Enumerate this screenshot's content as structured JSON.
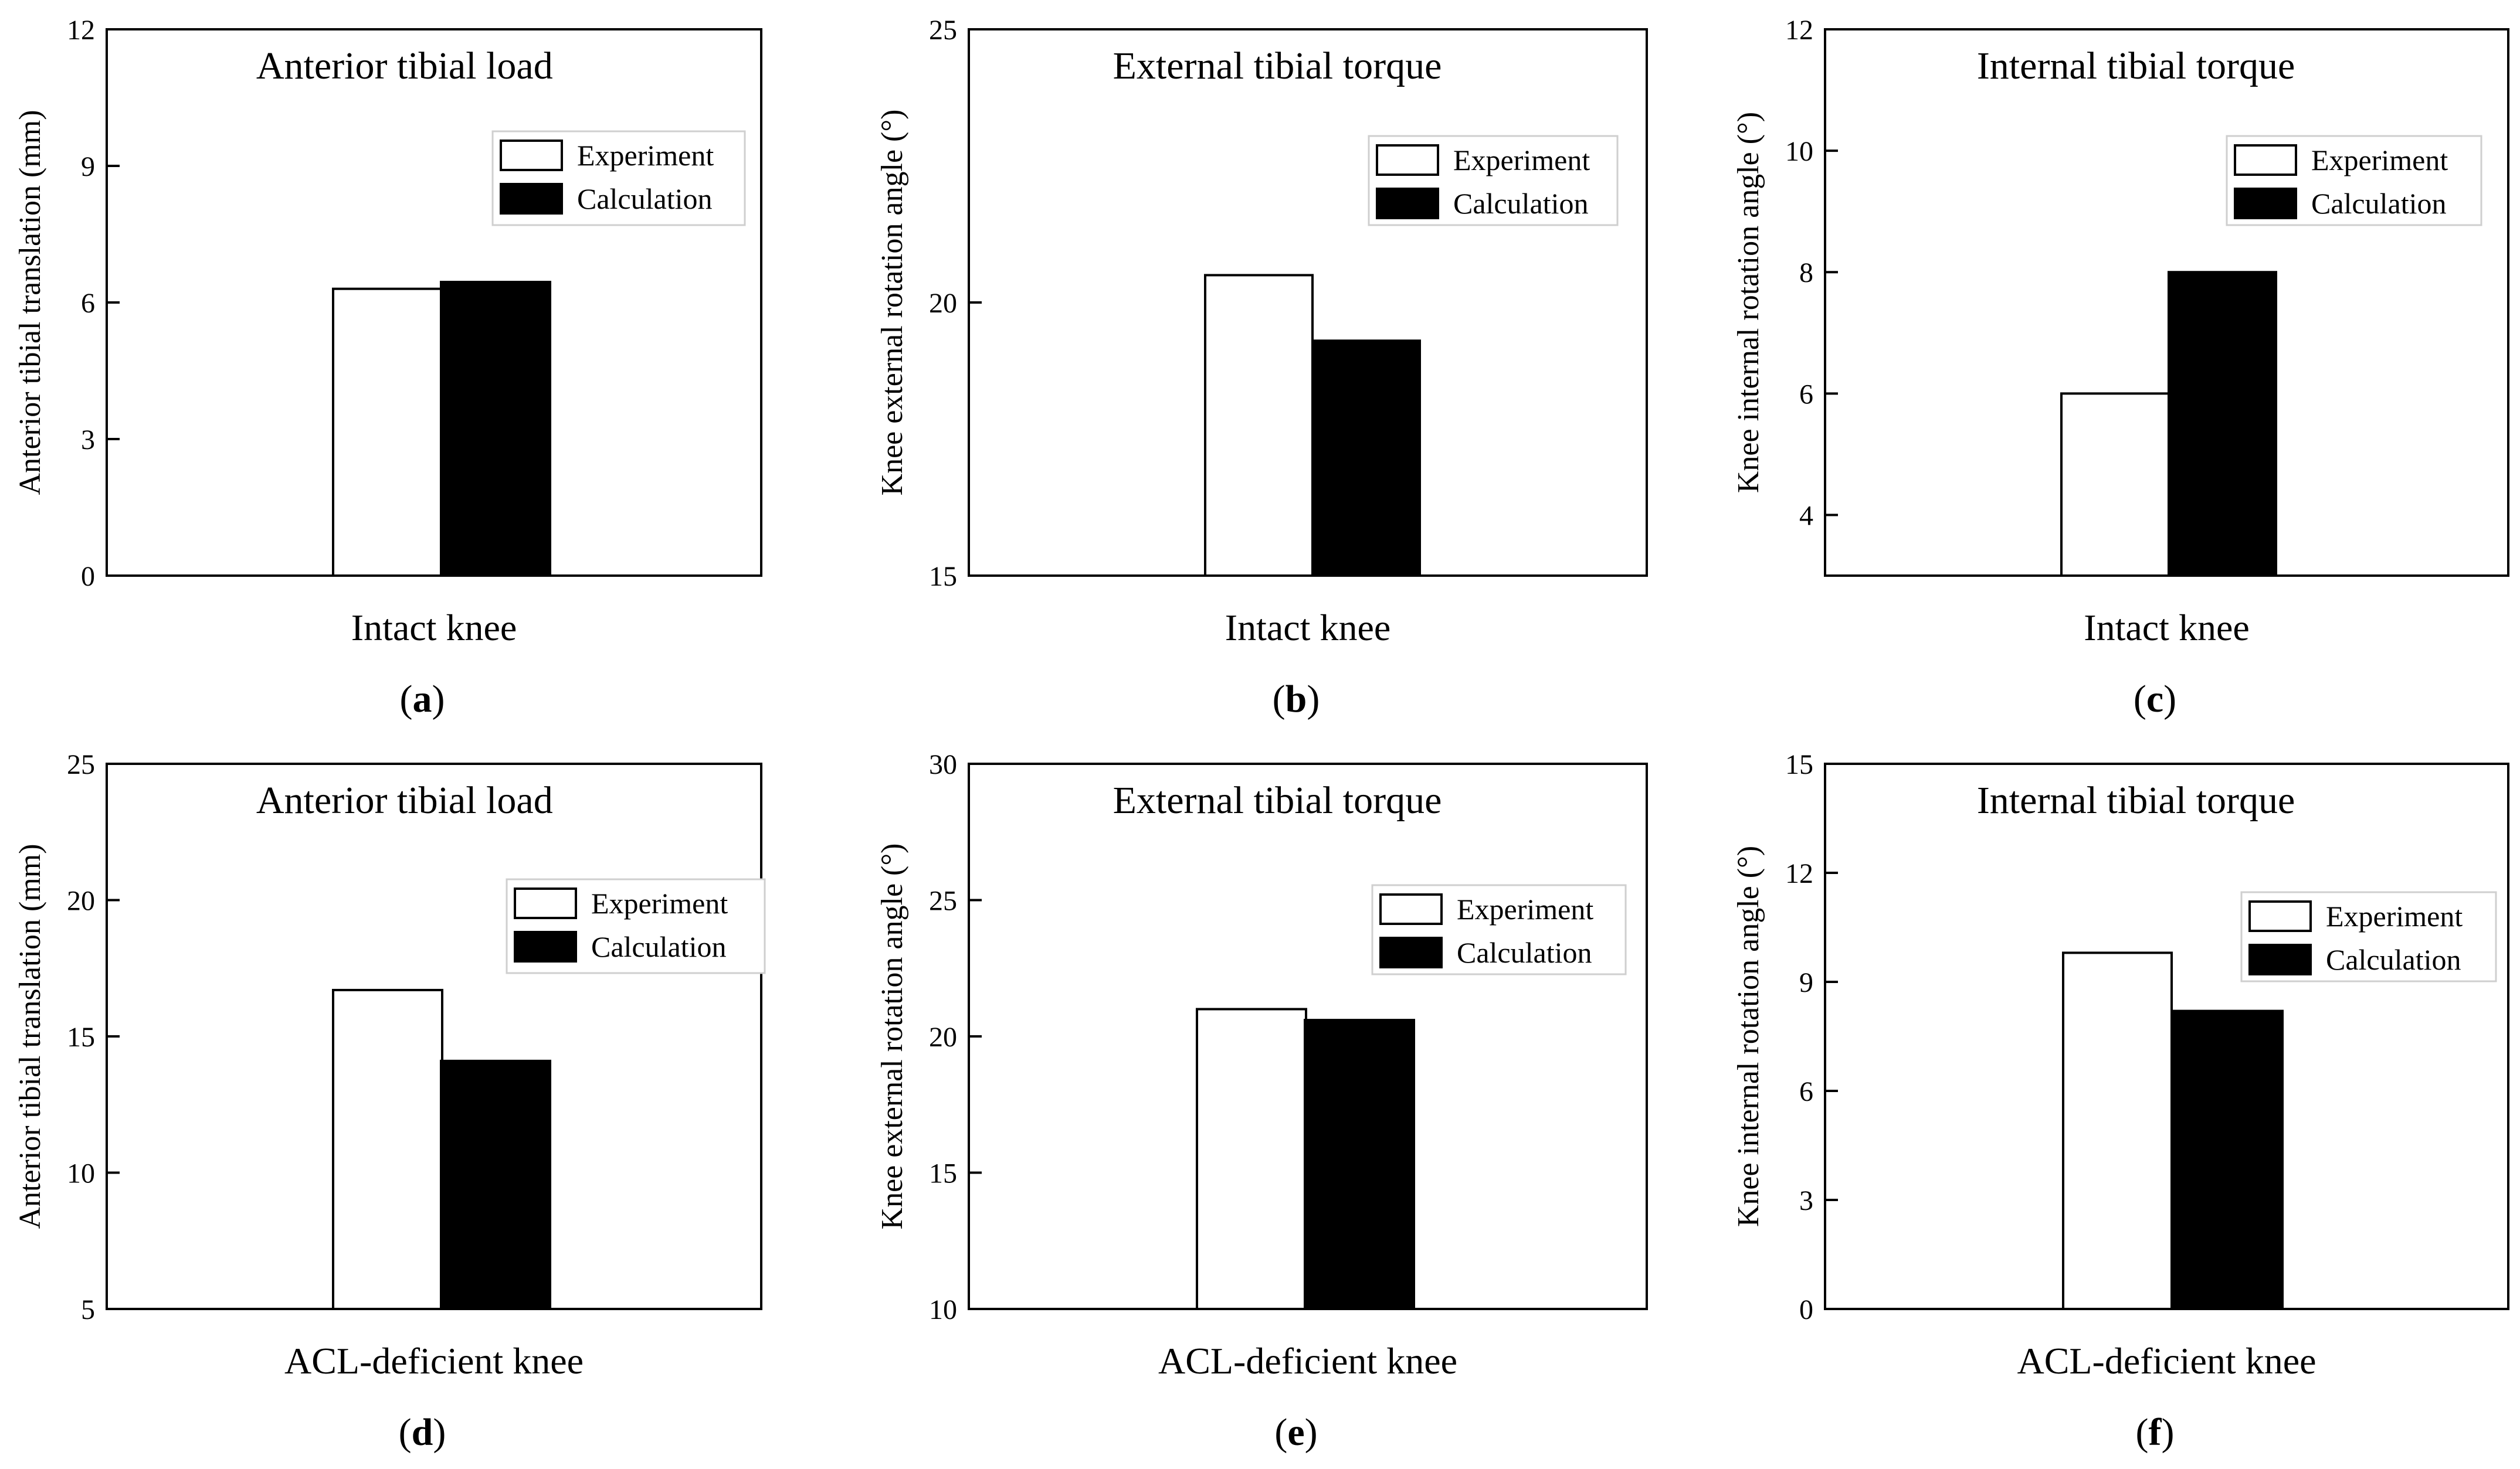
{
  "chart_data": [
    {
      "panel": "(a)",
      "panel_letter": "a",
      "type": "bar",
      "title": "Anterior tibial load",
      "xlabel": "Intact knee",
      "ylabel": "Anterior tibial translation (mm)",
      "ylim": [
        0,
        12
      ],
      "yticks": [
        0,
        3,
        6,
        9,
        12
      ],
      "series": [
        {
          "name": "Experiment",
          "value": 6.3,
          "color": "#ffffff"
        },
        {
          "name": "Calculation",
          "value": 6.45,
          "color": "#000000"
        }
      ]
    },
    {
      "panel": "(b)",
      "panel_letter": "b",
      "type": "bar",
      "title": "External tibial torque",
      "xlabel": "Intact knee",
      "ylabel": "Knee external rotation angle (°)",
      "ylim": [
        15,
        25
      ],
      "yticks": [
        15,
        20,
        25
      ],
      "series": [
        {
          "name": "Experiment",
          "value": 20.5,
          "color": "#ffffff"
        },
        {
          "name": "Calculation",
          "value": 19.3,
          "color": "#000000"
        }
      ]
    },
    {
      "panel": "(c)",
      "panel_letter": "c",
      "type": "bar",
      "title": "Internal tibial torque",
      "xlabel": "Intact knee",
      "ylabel": "Knee internal rotation angle (°)",
      "ylim": [
        3,
        12
      ],
      "yticks": [
        4,
        6,
        8,
        10,
        12
      ],
      "series": [
        {
          "name": "Experiment",
          "value": 6.0,
          "color": "#ffffff"
        },
        {
          "name": "Calculation",
          "value": 8.0,
          "color": "#000000"
        }
      ]
    },
    {
      "panel": "(d)",
      "panel_letter": "d",
      "type": "bar",
      "title": "Anterior tibial load",
      "xlabel": "ACL-deficient knee",
      "ylabel": "Anterior tibial translation (mm)",
      "ylim": [
        5,
        25
      ],
      "yticks": [
        5,
        10,
        15,
        20,
        25
      ],
      "series": [
        {
          "name": "Experiment",
          "value": 16.7,
          "color": "#ffffff"
        },
        {
          "name": "Calculation",
          "value": 14.1,
          "color": "#000000"
        }
      ]
    },
    {
      "panel": "(e)",
      "panel_letter": "e",
      "type": "bar",
      "title": "External tibial torque",
      "xlabel": "ACL-deficient knee",
      "ylabel": "Knee external rotation angle (°)",
      "ylim": [
        10,
        30
      ],
      "yticks": [
        10,
        15,
        20,
        25,
        30
      ],
      "series": [
        {
          "name": "Experiment",
          "value": 21.0,
          "color": "#ffffff"
        },
        {
          "name": "Calculation",
          "value": 20.6,
          "color": "#000000"
        }
      ]
    },
    {
      "panel": "(f)",
      "panel_letter": "f",
      "type": "bar",
      "title": "Internal tibial torque",
      "xlabel": "ACL-deficient knee",
      "ylabel": "Knee internal rotation angle (°)",
      "ylim": [
        0,
        15
      ],
      "yticks": [
        0,
        3,
        6,
        9,
        12,
        15
      ],
      "series": [
        {
          "name": "Experiment",
          "value": 9.8,
          "color": "#ffffff"
        },
        {
          "name": "Calculation",
          "value": 8.2,
          "color": "#000000"
        }
      ]
    }
  ]
}
